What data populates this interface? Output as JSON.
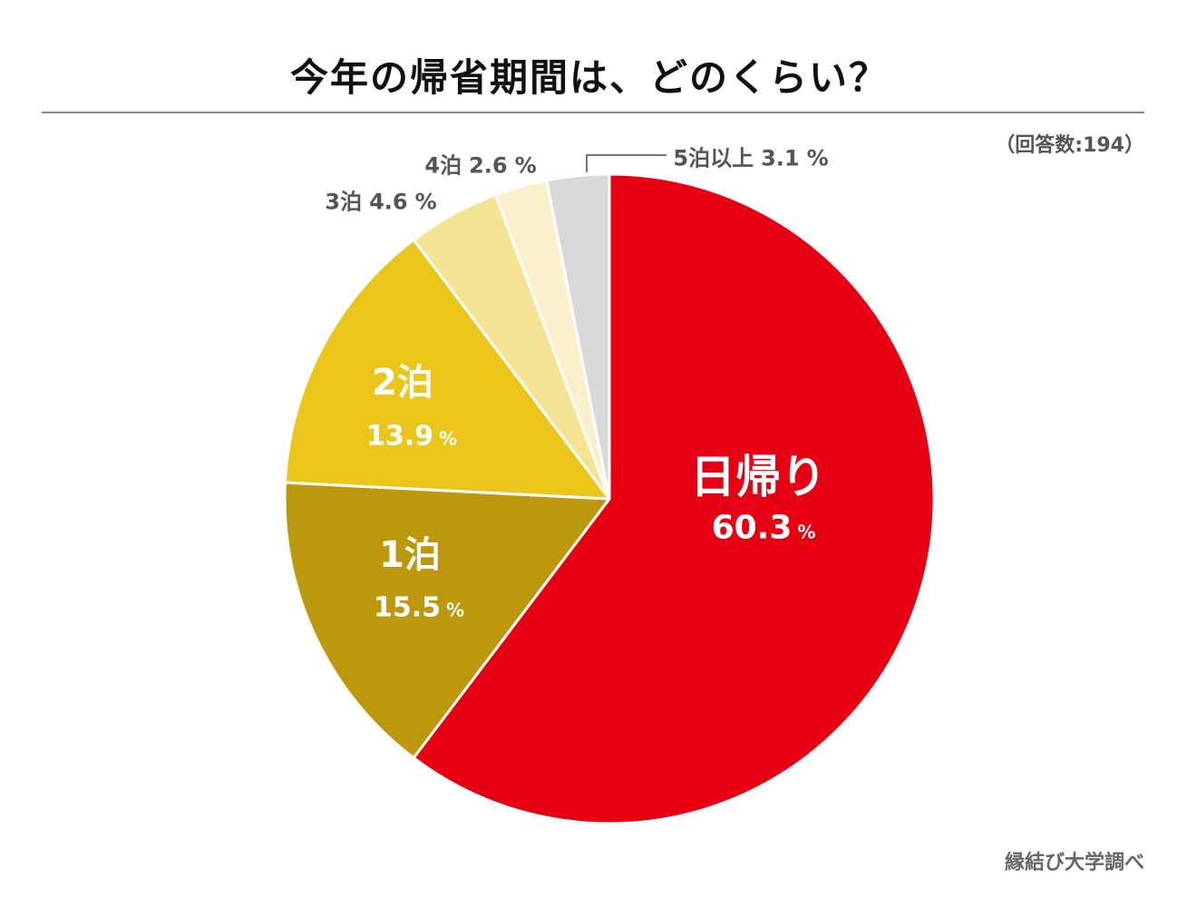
{
  "title": "今年の帰省期間は、どのくらい？",
  "note": "（回答数:194）",
  "source": "縁結び大学調べ",
  "chart_data": {
    "type": "pie",
    "title": "今年の帰省期間は、どのくらい？",
    "start": "top",
    "direction": "clockwise",
    "unit": "%",
    "slices": [
      {
        "label": "日帰り",
        "value": 60.3,
        "color": "#e60012"
      },
      {
        "label": "1泊",
        "value": 15.5,
        "color": "#bd980c"
      },
      {
        "label": "2泊",
        "value": 13.9,
        "color": "#ecc51a"
      },
      {
        "label": "3泊",
        "value": 4.6,
        "color": "#f5e394"
      },
      {
        "label": "4泊",
        "value": 2.6,
        "color": "#faf1cc"
      },
      {
        "label": "5泊以上",
        "value": 3.1,
        "color": "#d9d9d9"
      }
    ]
  }
}
